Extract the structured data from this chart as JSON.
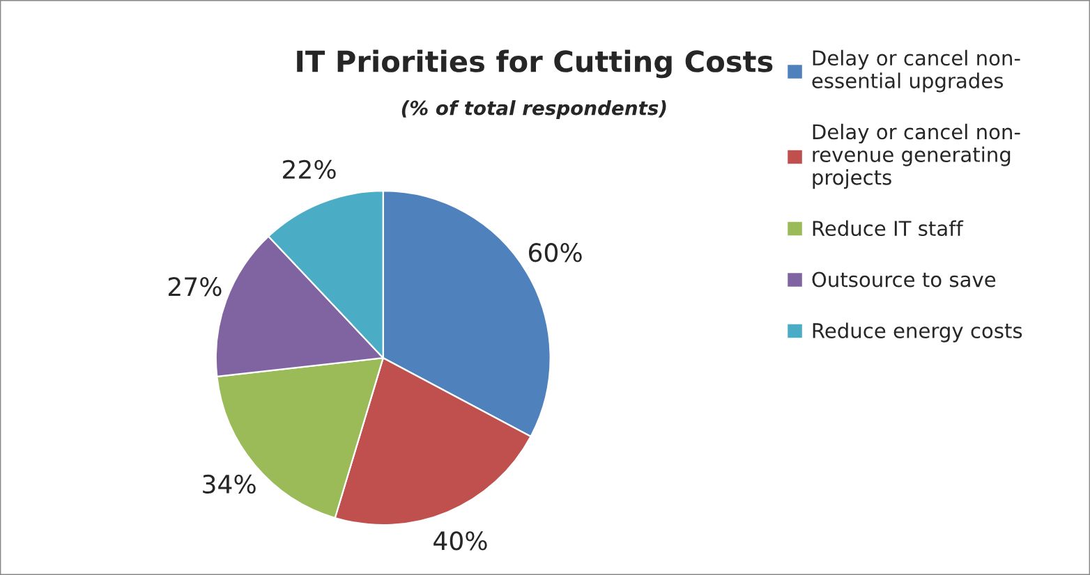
{
  "chart_data": {
    "type": "pie",
    "title": "IT Priorities for Cutting Costs",
    "subtitle": "(% of total respondents)",
    "categories": [
      "Delay or cancel non-\nessential upgrades",
      "Delay or cancel non-\nrevenue generating\nprojects",
      "Reduce IT staff",
      "Outsource to save",
      "Reduce energy costs"
    ],
    "values": [
      60,
      40,
      34,
      27,
      22
    ],
    "value_labels": [
      "60%",
      "40%",
      "34%",
      "27%",
      "22%"
    ],
    "colors": [
      "#4f81bd",
      "#c0504d",
      "#9bbb59",
      "#8064a2",
      "#4bacc6"
    ],
    "legend": "right"
  }
}
